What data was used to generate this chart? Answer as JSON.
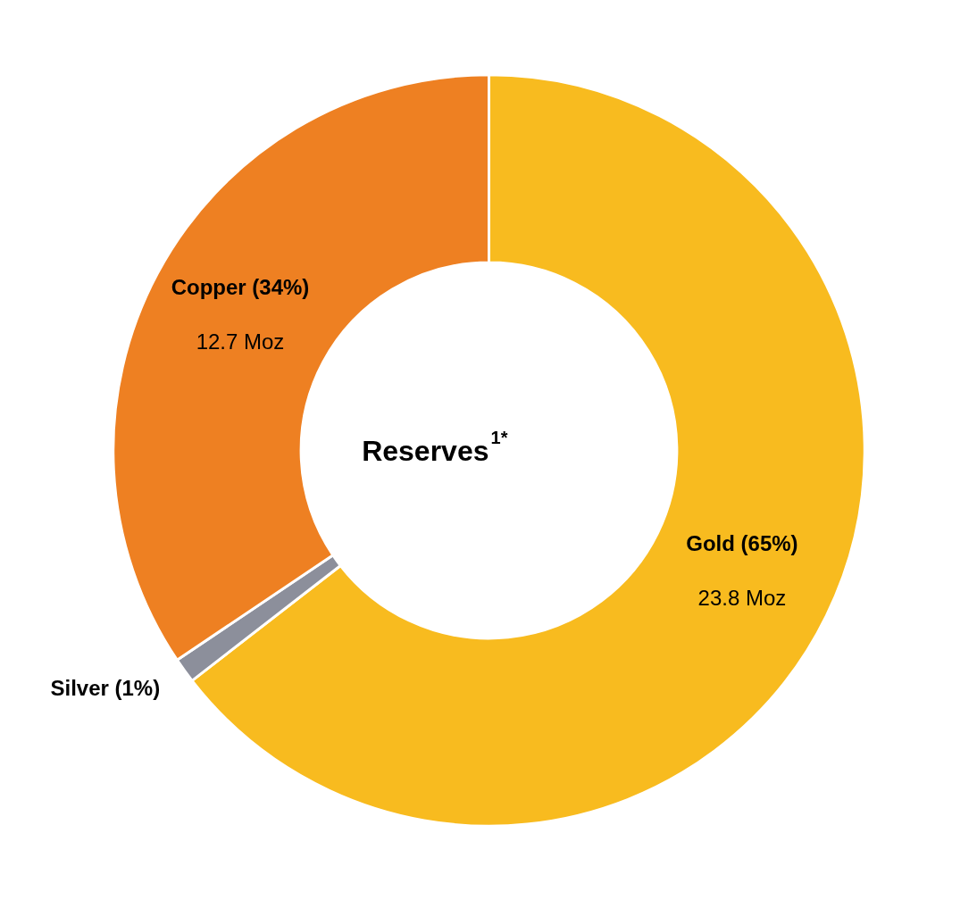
{
  "chart_data": {
    "type": "donut",
    "title": "Reserves$^{1*}$",
    "categories": [
      "Gold (65%)",
      "Silver (1%)",
      "Copper (34%)"
    ],
    "values": [
      23.8,
      0.4,
      12.7
    ],
    "colors": [
      "#f8bb1f",
      "#8c8f9b",
      "#ee8022"
    ],
    "value_labels": [
      "23.8 Moz",
      null,
      "12.7 Moz"
    ]
  }
}
